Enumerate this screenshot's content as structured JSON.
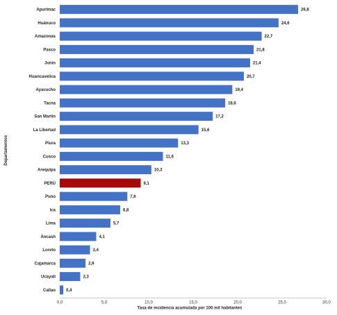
{
  "chart_data": {
    "type": "bar",
    "orientation": "horizontal",
    "categories": [
      "Apurímac",
      "Huánuco",
      "Amazonas",
      "Pasco",
      "Junín",
      "Huancavelica",
      "Ayacucho",
      "Tacna",
      "San Martín",
      "La Libertad",
      "Piura",
      "Cusco",
      "Arequipa",
      "PERÚ",
      "Puno",
      "Ica",
      "Lima",
      "Áncash",
      "Loreto",
      "Cajamarca",
      "Ucayali",
      "Callao"
    ],
    "values": [
      26.8,
      24.6,
      22.7,
      21.8,
      21.4,
      20.7,
      19.4,
      18.6,
      17.2,
      15.6,
      13.3,
      11.6,
      10.3,
      9.1,
      7.6,
      6.8,
      5.7,
      4.1,
      3.4,
      2.9,
      2.3,
      0.4
    ],
    "value_labels": [
      "26,8",
      "24,6",
      "22,7",
      "21,8",
      "21,4",
      "20,7",
      "19,4",
      "18,6",
      "17,2",
      "15,6",
      "13,3",
      "11,6",
      "10,3",
      "9,1",
      "7,6",
      "6,8",
      "5,7",
      "4,1",
      "3,4",
      "2,9",
      "2,3",
      "0,4"
    ],
    "highlight_index": 13,
    "xlabel": "Tasa de incidencia acumulada por 100 mil habitantes",
    "ylabel": "Departamentos",
    "xlim": [
      0,
      30
    ],
    "xticks": [
      0,
      5,
      10,
      15,
      20,
      25,
      30
    ],
    "xtick_labels": [
      "0,0",
      "5,0",
      "10,0",
      "15,0",
      "20,0",
      "25,0",
      "30,0"
    ],
    "grid": false,
    "colors": {
      "bar": "#4472c4",
      "highlight": "#a50a0a"
    }
  }
}
